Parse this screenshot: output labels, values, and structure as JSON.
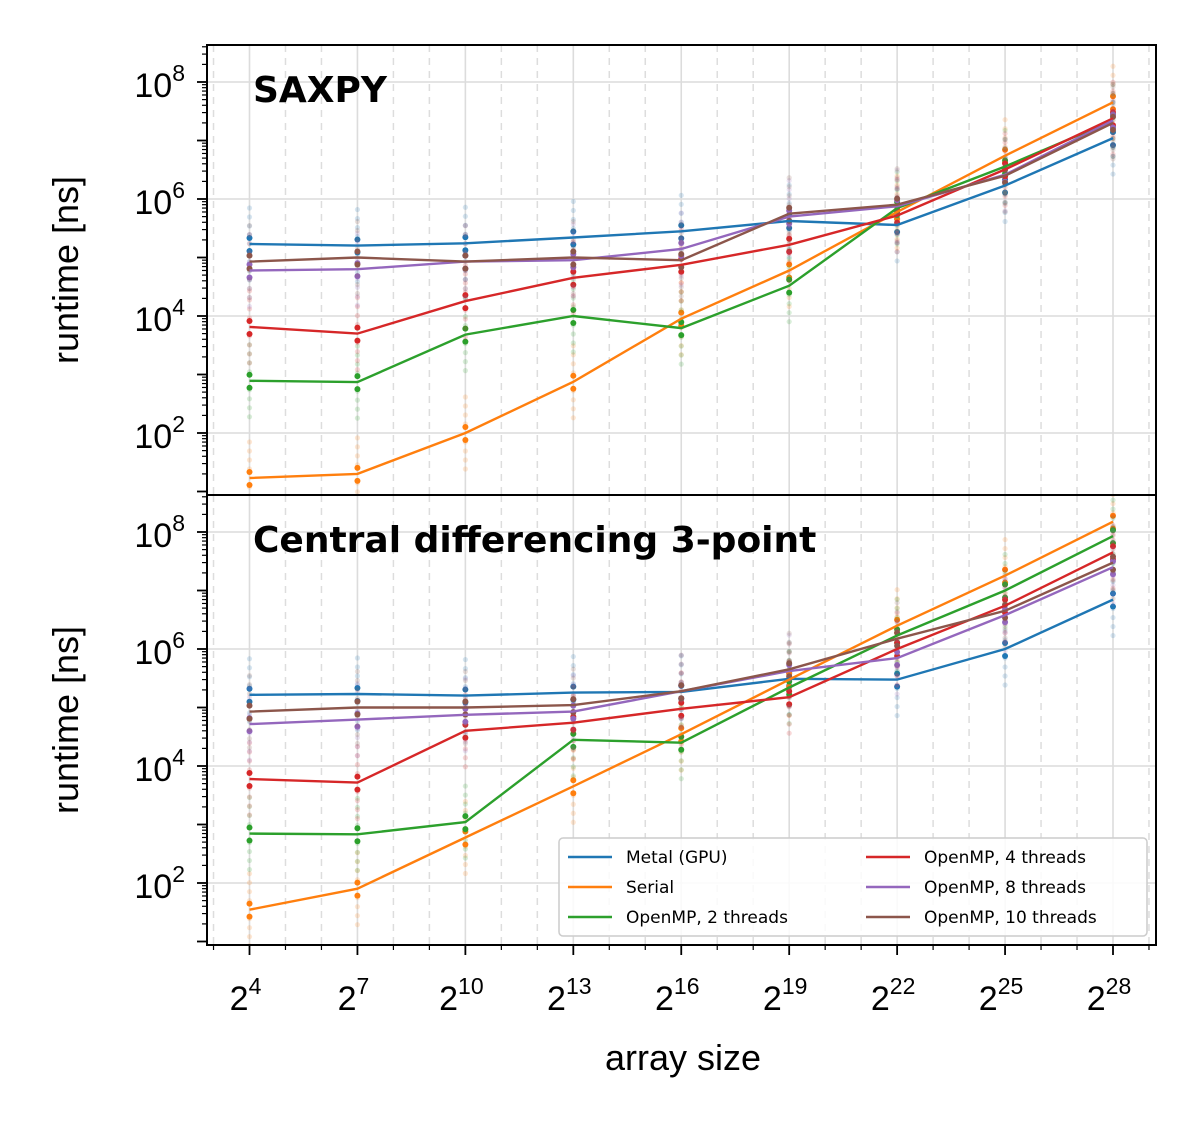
{
  "chart_data": {
    "type": "line",
    "xlabel": "array size",
    "x_scale": "log2",
    "y_scale": "log10",
    "x": [
      16,
      128,
      1024,
      8192,
      65536,
      524288,
      4194304,
      33554432,
      268435456
    ],
    "x_ticks": [
      {
        "base": "2",
        "exp": "4"
      },
      {
        "base": "2",
        "exp": "7"
      },
      {
        "base": "2",
        "exp": "10"
      },
      {
        "base": "2",
        "exp": "13"
      },
      {
        "base": "2",
        "exp": "16"
      },
      {
        "base": "2",
        "exp": "19"
      },
      {
        "base": "2",
        "exp": "22"
      },
      {
        "base": "2",
        "exp": "25"
      },
      {
        "base": "2",
        "exp": "28"
      }
    ],
    "y_ticks": [
      {
        "base": "10",
        "exp": "2"
      },
      {
        "base": "10",
        "exp": "4"
      },
      {
        "base": "10",
        "exp": "6"
      },
      {
        "base": "10",
        "exp": "8"
      }
    ],
    "grid": true,
    "legend": {
      "placement": "lower-right of bottom panel",
      "entries": [
        "Metal (GPU)",
        "Serial",
        "OpenMP, 2 threads",
        "OpenMP, 4 threads",
        "OpenMP, 8 threads",
        "OpenMP, 10 threads"
      ]
    },
    "colors": {
      "Metal (GPU)": "#1f77b4",
      "Serial": "#ff7f0e",
      "OpenMP, 2 threads": "#2ca02c",
      "OpenMP, 4 threads": "#d62728",
      "OpenMP, 8 threads": "#9467bd",
      "OpenMP, 10 threads": "#8c564b"
    },
    "panels": [
      {
        "title": "SAXPY",
        "ylabel": "runtime [ns]",
        "ylim": [
          8,
          400000000
        ],
        "series": [
          {
            "name": "Metal (GPU)",
            "values": [
              170000,
              160000,
              175000,
              220000,
              280000,
              420000,
              360000,
              1700000,
              11000000
            ]
          },
          {
            "name": "Serial",
            "values": [
              17,
              20,
              100,
              750,
              9000,
              60000,
              600000,
              5500000,
              45000000
            ]
          },
          {
            "name": "OpenMP, 2 threads",
            "values": [
              780,
              740,
              4800,
              10000,
              6200,
              33000,
              700000,
              3600000,
              22000000
            ]
          },
          {
            "name": "OpenMP, 4 threads",
            "values": [
              6500,
              5000,
              18000,
              45000,
              75000,
              165000,
              520000,
              3200000,
              24000000
            ]
          },
          {
            "name": "OpenMP, 8 threads",
            "values": [
              60000,
              63000,
              85000,
              90000,
              140000,
              500000,
              750000,
              2600000,
              22000000
            ]
          },
          {
            "name": "OpenMP, 10 threads",
            "values": [
              85000,
              100000,
              85000,
              100000,
              90000,
              560000,
              800000,
              2500000,
              20000000
            ]
          }
        ]
      },
      {
        "title": "Central differencing 3-point",
        "ylabel": "runtime [ns]",
        "ylim": [
          8,
          400000000
        ],
        "series": [
          {
            "name": "Metal (GPU)",
            "values": [
              165000,
              170000,
              160000,
              180000,
              185000,
              310000,
              300000,
              1000000,
              7000000
            ]
          },
          {
            "name": "Serial",
            "values": [
              35,
              80,
              600,
              4500,
              35000,
              300000,
              2500000,
              18000000,
              150000000
            ]
          },
          {
            "name": "OpenMP, 2 threads",
            "values": [
              700,
              680,
              1100,
              28000,
              25000,
              220000,
              1700000,
              10000000,
              85000000
            ]
          },
          {
            "name": "OpenMP, 4 threads",
            "values": [
              6000,
              5200,
              40000,
              55000,
              95000,
              150000,
              1000000,
              5500000,
              45000000
            ]
          },
          {
            "name": "OpenMP, 8 threads",
            "values": [
              52000,
              62000,
              75000,
              85000,
              190000,
              420000,
              700000,
              3800000,
              25000000
            ]
          },
          {
            "name": "OpenMP, 10 threads",
            "values": [
              85000,
              100000,
              100000,
              110000,
              190000,
              450000,
              1500000,
              4500000,
              30000000
            ]
          }
        ]
      }
    ]
  }
}
